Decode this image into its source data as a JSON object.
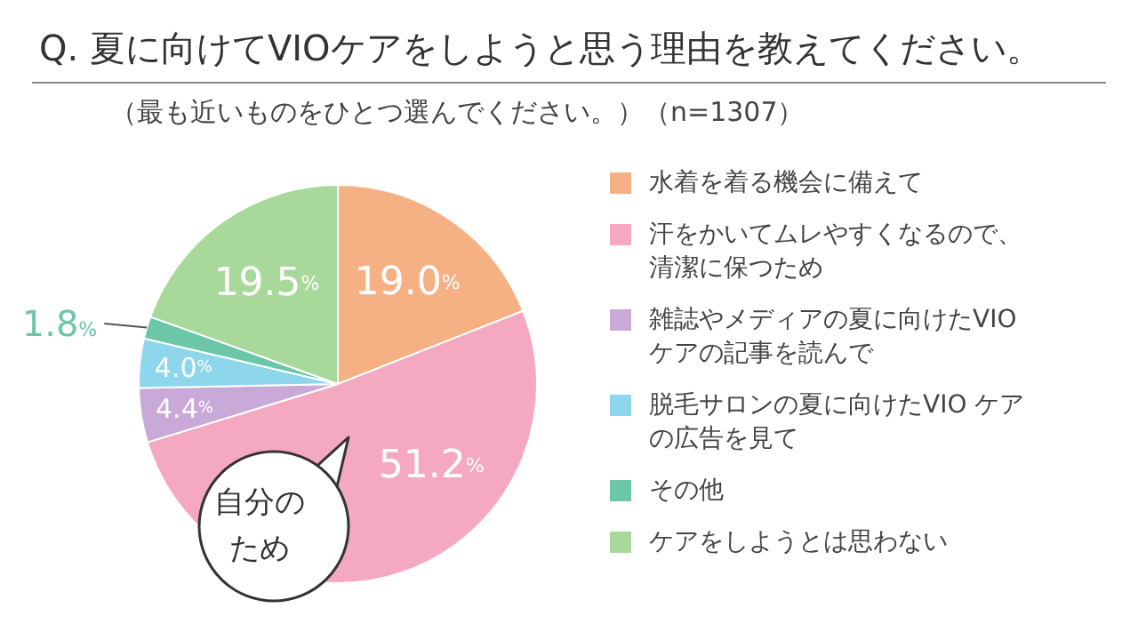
{
  "chart_data": {
    "type": "pie",
    "title": "Q. 夏に向けてVIOケアをしようと思う理由を教えてください。",
    "subtitle": "（最も近いものをひとつ選んでください。）（n=1307）",
    "categories": [
      "水着を着る機会に備えて",
      "汗をかいてムレやすくなるので、清潔に保つため",
      "雑誌やメディアの夏に向けたVIO ケアの記事を読んで",
      "脱毛サロンの夏に向けたVIO ケアの広告を見て",
      "その他",
      "ケアをしようとは思わない"
    ],
    "values": [
      19.0,
      51.2,
      4.4,
      4.0,
      1.8,
      19.5
    ],
    "colors": [
      "#f5b084",
      "#f4a9c0",
      "#c8a9d8",
      "#8dd6ec",
      "#6cc6a8",
      "#a9d89b"
    ],
    "value_labels": [
      "19.0%",
      "51.2%",
      "4.4%",
      "4.0%",
      "1.8%",
      "19.5%"
    ],
    "legend": "right",
    "annotations": [
      "自分のため"
    ]
  }
}
